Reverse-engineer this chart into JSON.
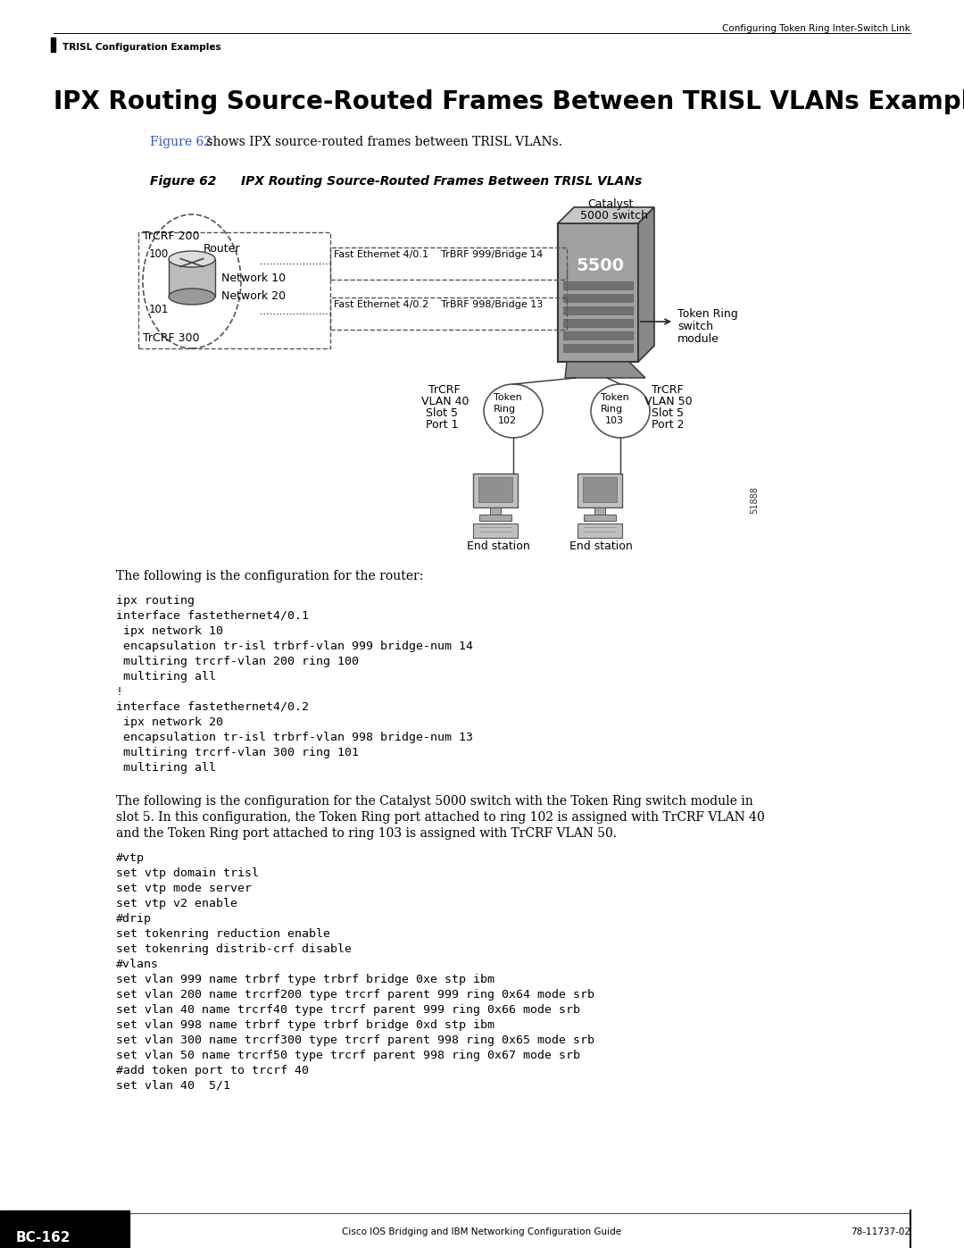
{
  "page_title": "IPX Routing Source-Routed Frames Between TRISL VLANs Example",
  "header_right": "Configuring Token Ring Inter-Switch Link",
  "header_left": "TRISL Configuration Examples",
  "figure_label": "Figure 62",
  "figure_title": "IPX Routing Source-Routed Frames Between TRISL VLANs",
  "intro_text": " shows IPX source-routed frames between TRISL VLANs.",
  "figure_ref": "Figure 62",
  "router_text1": "The following is the configuration for the router:",
  "router_code": "ipx routing\ninterface fastethernet4/0.1\n ipx network 10\n encapsulation tr-isl trbrf-vlan 999 bridge-num 14\n multiring trcrf-vlan 200 ring 100\n multiring all\n!\ninterface fastethernet4/0.2\n ipx network 20\n encapsulation tr-isl trbrf-vlan 998 bridge-num 13\n multiring trcrf-vlan 300 ring 101\n multiring all",
  "catalyst_text_1": "The following is the configuration for the Catalyst 5000 switch with the Token Ring switch module in",
  "catalyst_text_2": "slot 5. In this configuration, the Token Ring port attached to ring 102 is assigned with TrCRF VLAN 40",
  "catalyst_text_3": "and the Token Ring port attached to ring 103 is assigned with TrCRF VLAN 50.",
  "catalyst_code": "#vtp\nset vtp domain trisl\nset vtp mode server\nset vtp v2 enable\n#drip\nset tokenring reduction enable\nset tokenring distrib-crf disable\n#vlans\nset vlan 999 name trbrf type trbrf bridge 0xe stp ibm\nset vlan 200 name trcrf200 type trcrf parent 999 ring 0x64 mode srb\nset vlan 40 name trcrf40 type trcrf parent 999 ring 0x66 mode srb\nset vlan 998 name trbrf type trbrf bridge 0xd stp ibm\nset vlan 300 name trcrf300 type trcrf parent 998 ring 0x65 mode srb\nset vlan 50 name trcrf50 type trcrf parent 998 ring 0x67 mode srb\n#add token port to trcrf 40\nset vlan 40  5/1",
  "footer_left": "Cisco IOS Bridging and IBM Networking Configuration Guide",
  "footer_page": "BC-162",
  "footer_right": "78-11737-02",
  "bg_color": "#ffffff",
  "text_color": "#000000",
  "figure_ref_color": "#3355cc"
}
